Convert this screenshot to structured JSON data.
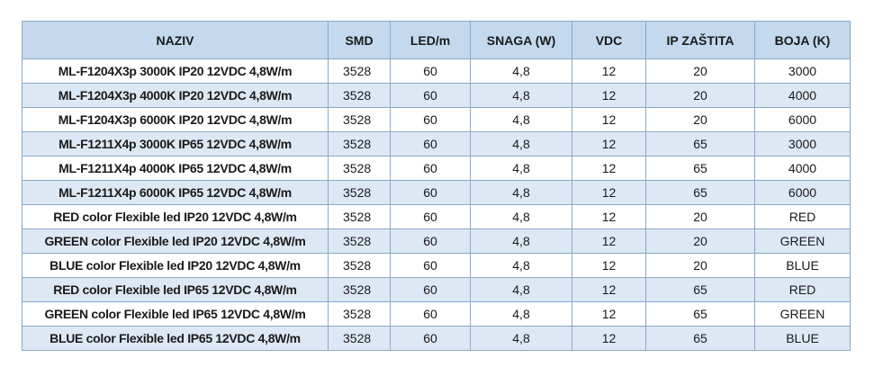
{
  "table": {
    "headers": [
      "NAZIV",
      "SMD",
      "LED/m",
      "SNAGA (W)",
      "VDC",
      "IP ZAŠTITA",
      "BOJA (K)"
    ],
    "rows": [
      [
        "ML-F1204X3p 3000K IP20 12VDC 4,8W/m",
        "3528",
        "60",
        "4,8",
        "12",
        "20",
        "3000"
      ],
      [
        "ML-F1204X3p 4000K IP20 12VDC 4,8W/m",
        "3528",
        "60",
        "4,8",
        "12",
        "20",
        "4000"
      ],
      [
        "ML-F1204X3p 6000K IP20 12VDC 4,8W/m",
        "3528",
        "60",
        "4,8",
        "12",
        "20",
        "6000"
      ],
      [
        "ML-F1211X4p 3000K IP65 12VDC 4,8W/m",
        "3528",
        "60",
        "4,8",
        "12",
        "65",
        "3000"
      ],
      [
        "ML-F1211X4p 4000K IP65 12VDC 4,8W/m",
        "3528",
        "60",
        "4,8",
        "12",
        "65",
        "4000"
      ],
      [
        "ML-F1211X4p 6000K IP65 12VDC 4,8W/m",
        "3528",
        "60",
        "4,8",
        "12",
        "65",
        "6000"
      ],
      [
        "RED color Flexible led IP20 12VDC 4,8W/m",
        "3528",
        "60",
        "4,8",
        "12",
        "20",
        "RED"
      ],
      [
        "GREEN color Flexible led IP20 12VDC 4,8W/m",
        "3528",
        "60",
        "4,8",
        "12",
        "20",
        "GREEN"
      ],
      [
        "BLUE color Flexible led IP20 12VDC 4,8W/m",
        "3528",
        "60",
        "4,8",
        "12",
        "20",
        "BLUE"
      ],
      [
        "RED color Flexible led IP65 12VDC 4,8W/m",
        "3528",
        "60",
        "4,8",
        "12",
        "65",
        "RED"
      ],
      [
        "GREEN color Flexible led IP65 12VDC 4,8W/m",
        "3528",
        "60",
        "4,8",
        "12",
        "65",
        "GREEN"
      ],
      [
        "BLUE color Flexible led IP65 12VDC 4,8W/m",
        "3528",
        "60",
        "4,8",
        "12",
        "65",
        "BLUE"
      ]
    ]
  },
  "colors": {
    "header_bg": "#c4d9ee",
    "stripe_bg": "#dde8f5",
    "border": "#8aa8c8"
  }
}
